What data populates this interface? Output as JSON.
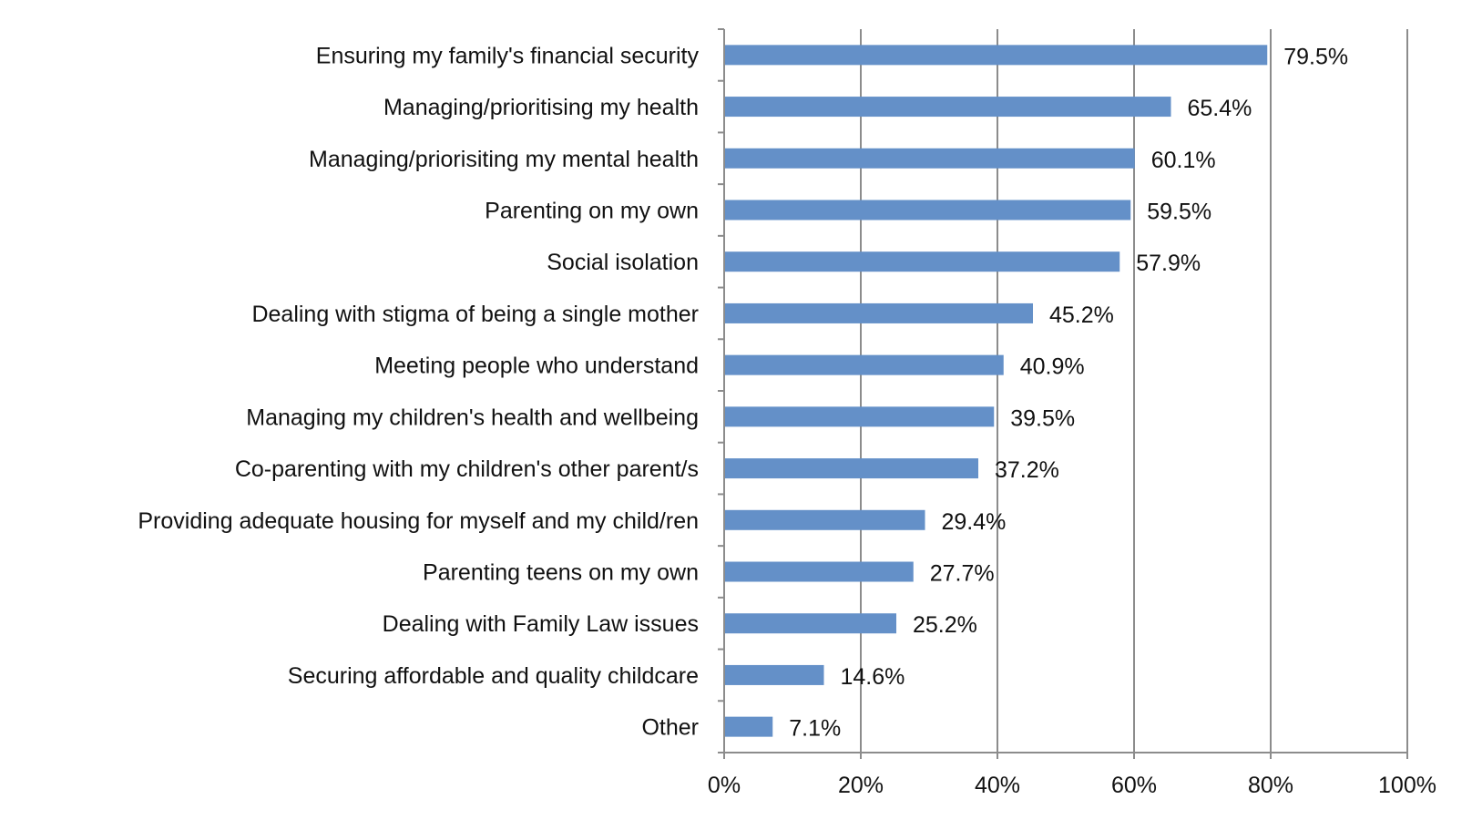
{
  "chart_data": {
    "type": "bar",
    "orientation": "horizontal",
    "categories": [
      "Ensuring my family's financial security",
      "Managing/prioritising my health",
      "Managing/priorisiting my mental health",
      "Parenting on my own",
      "Social isolation",
      "Dealing with stigma of being a single mother",
      "Meeting people who understand",
      "Managing my children's health and wellbeing",
      "Co-parenting with my children's other parent/s",
      "Providing adequate housing for myself and my child/ren",
      "Parenting teens on my own",
      "Dealing with Family Law issues",
      "Securing affordable and quality childcare",
      "Other"
    ],
    "values": [
      79.5,
      65.4,
      60.1,
      59.5,
      57.9,
      45.2,
      40.9,
      39.5,
      37.2,
      29.4,
      27.7,
      25.2,
      14.6,
      7.1
    ],
    "data_labels": [
      "79.5%",
      "65.4%",
      "60.1%",
      "59.5%",
      "57.9%",
      "45.2%",
      "40.9%",
      "39.5%",
      "37.2%",
      "29.4%",
      "27.7%",
      "25.2%",
      "14.6%",
      "7.1%"
    ],
    "x_ticks": [
      0,
      20,
      40,
      60,
      80,
      100
    ],
    "x_tick_labels": [
      "0%",
      "20%",
      "40%",
      "60%",
      "80%",
      "100%"
    ],
    "xlim": [
      0,
      100
    ],
    "title": "",
    "xlabel": "",
    "ylabel": "",
    "grid": "vertical",
    "legend": "none",
    "colors": {
      "bar": "#6490c8",
      "grid": "#8c8c8c",
      "axis": "#8c8c8c",
      "text": "#111111"
    }
  }
}
